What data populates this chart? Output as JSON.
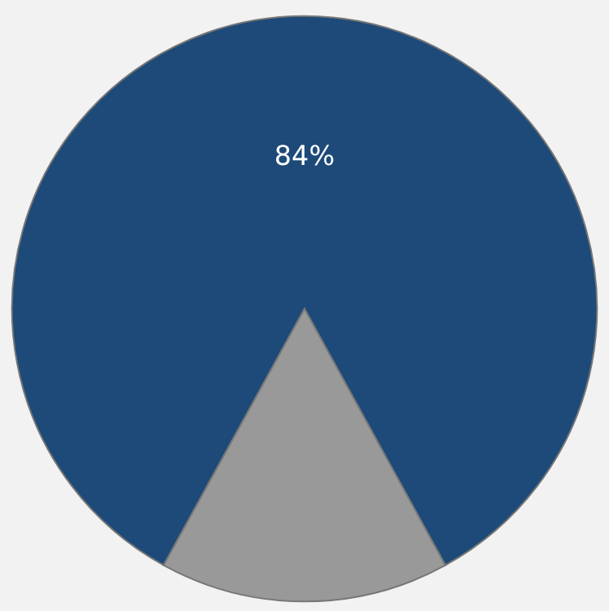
{
  "chart_data": {
    "type": "pie",
    "categories": [
      null,
      null
    ],
    "values": [
      84,
      16
    ],
    "colors": [
      "#1d4a78",
      "#999999"
    ],
    "value_labels": [
      "84%",
      null
    ],
    "legend": false
  }
}
